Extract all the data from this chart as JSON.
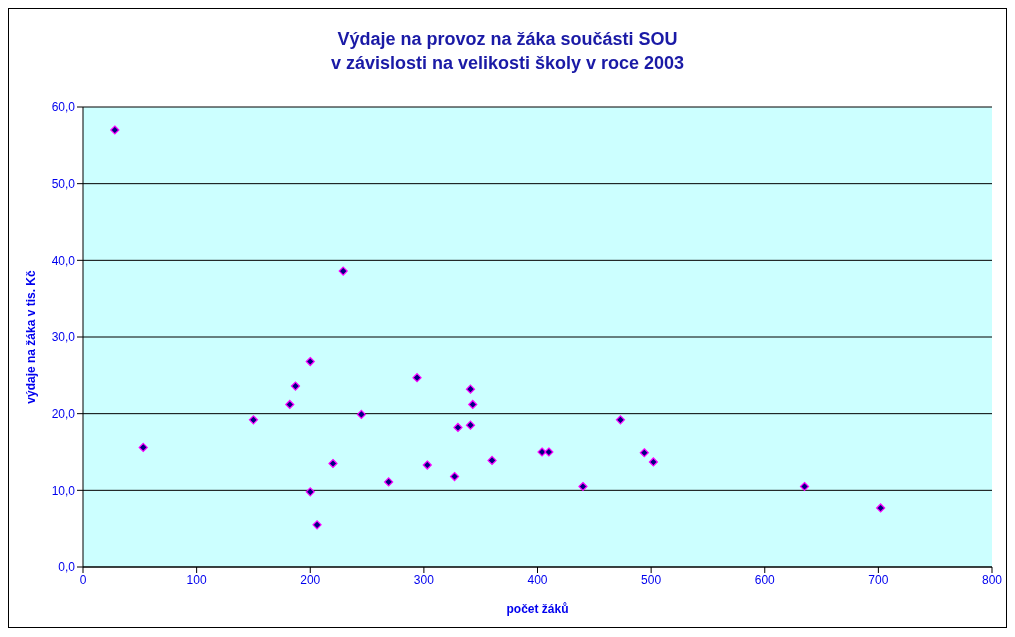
{
  "chart_data": {
    "type": "scatter",
    "title": "Výdaje na provoz na žáka součásti SOU\nv závislosti na velikosti školy v roce 2003",
    "xlabel": "počet žáků",
    "ylabel": "výdaje na žáka v tis. Kč",
    "x": [
      28,
      53,
      150,
      182,
      187,
      200,
      200,
      206,
      220,
      229,
      245,
      269,
      294,
      303,
      327,
      330,
      341,
      341,
      343,
      360,
      404,
      410,
      440,
      473,
      494,
      502,
      635,
      702
    ],
    "series": [
      {
        "color": "#000080",
        "values": [
          57.0,
          15.6,
          19.2,
          21.2,
          23.6,
          26.8,
          9.8,
          5.5,
          13.5,
          38.6,
          19.9,
          11.1,
          24.7,
          13.3,
          11.8,
          18.2,
          23.2,
          18.5,
          21.2,
          13.9,
          15.0,
          15.0,
          10.5,
          19.2,
          14.9,
          13.7,
          10.5,
          7.7
        ]
      }
    ],
    "xlim": [
      0,
      800
    ],
    "xticks": [
      0,
      100,
      200,
      300,
      400,
      500,
      600,
      700,
      800
    ],
    "ylim": [
      0,
      60
    ],
    "yticks": [
      {
        "value": 0,
        "label": "0,0"
      },
      {
        "value": 10,
        "label": "10,0"
      },
      {
        "value": 20,
        "label": "20,0"
      },
      {
        "value": 30,
        "label": "30,0"
      },
      {
        "value": 40,
        "label": "40,0"
      },
      {
        "value": 50,
        "label": "50,0"
      },
      {
        "value": 60,
        "label": "60,0"
      }
    ],
    "grid": "y",
    "marker": "diamond"
  }
}
